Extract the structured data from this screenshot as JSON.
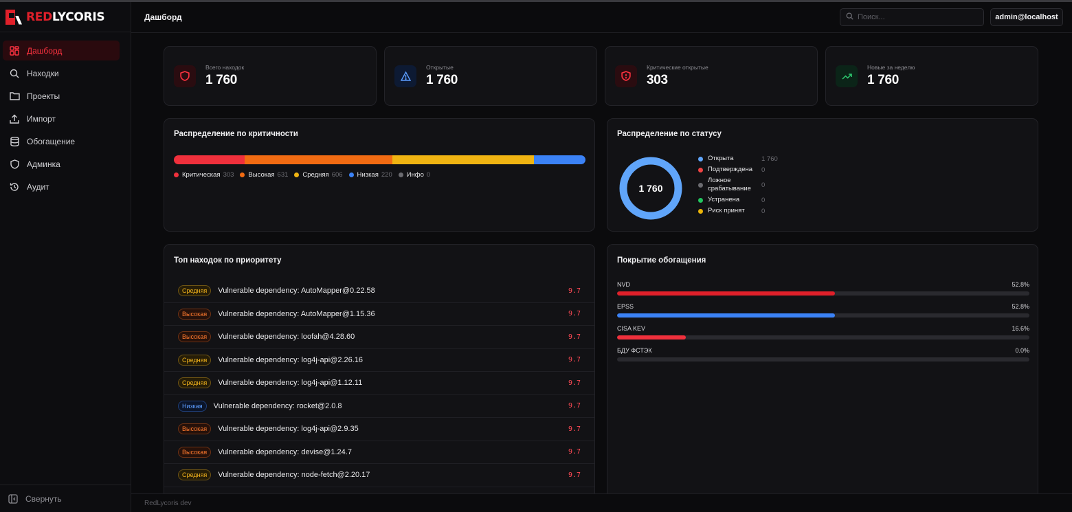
{
  "app": {
    "logo_part1": "RED",
    "logo_part2": "LYCORIS"
  },
  "sidebar": {
    "items": [
      {
        "label": "Дашборд",
        "icon": "dashboard-icon",
        "active": true
      },
      {
        "label": "Находки",
        "icon": "search-icon"
      },
      {
        "label": "Проекты",
        "icon": "folder-icon"
      },
      {
        "label": "Импорт",
        "icon": "upload-icon"
      },
      {
        "label": "Обогащение",
        "icon": "database-icon"
      },
      {
        "label": "Админка",
        "icon": "shield-icon"
      },
      {
        "label": "Аудит",
        "icon": "history-icon"
      }
    ],
    "collapse_label": "Свернуть"
  },
  "header": {
    "title": "Дашборд",
    "search_placeholder": "Поиск...",
    "user": "admin@localhost"
  },
  "stats": [
    {
      "label": "Всего находок",
      "value": "1 760",
      "icon": "shield-icon",
      "color": "#ff3340"
    },
    {
      "label": "Открытые",
      "value": "1 760",
      "icon": "alert-triangle-icon",
      "color": "#5c9dff"
    },
    {
      "label": "Критические открытые",
      "value": "303",
      "icon": "shield-alert-icon",
      "color": "#ff3340"
    },
    {
      "label": "Новые за неделю",
      "value": "1 760",
      "icon": "trending-up-icon",
      "color": "#2ecc71"
    }
  ],
  "severity": {
    "title": "Распределение по критичности",
    "items": [
      {
        "label": "Критическая",
        "count": 303,
        "color": "#f0303c"
      },
      {
        "label": "Высокая",
        "count": 631,
        "color": "#f26b12"
      },
      {
        "label": "Средняя",
        "count": 606,
        "color": "#f0b412"
      },
      {
        "label": "Низкая",
        "count": 220,
        "color": "#3b82f6"
      },
      {
        "label": "Инфо",
        "count": 0,
        "color": "#6b6b70"
      }
    ]
  },
  "status": {
    "title": "Распределение по статусу",
    "total": "1 760",
    "items": [
      {
        "label": "Открыта",
        "count": "1 760",
        "color": "#60a5fa"
      },
      {
        "label": "Подтверждена",
        "count": "0",
        "color": "#ef4444"
      },
      {
        "label": "Ложное срабатывание",
        "count": "0",
        "color": "#6b6b70"
      },
      {
        "label": "Устранена",
        "count": "0",
        "color": "#22c55e"
      },
      {
        "label": "Риск принят",
        "count": "0",
        "color": "#eab308"
      }
    ]
  },
  "top": {
    "title": "Топ находок по приоритету",
    "rows": [
      {
        "severity": "Средняя",
        "sev_class": "medium",
        "title": "Vulnerable dependency: AutoMapper@0.22.58",
        "score": "9.7"
      },
      {
        "severity": "Высокая",
        "sev_class": "high",
        "title": "Vulnerable dependency: AutoMapper@1.15.36",
        "score": "9.7"
      },
      {
        "severity": "Высокая",
        "sev_class": "high",
        "title": "Vulnerable dependency: loofah@4.28.60",
        "score": "9.7"
      },
      {
        "severity": "Средняя",
        "sev_class": "medium",
        "title": "Vulnerable dependency: log4j-api@2.26.16",
        "score": "9.7"
      },
      {
        "severity": "Средняя",
        "sev_class": "medium",
        "title": "Vulnerable dependency: log4j-api@1.12.11",
        "score": "9.7"
      },
      {
        "severity": "Низкая",
        "sev_class": "low",
        "title": "Vulnerable dependency: rocket@2.0.8",
        "score": "9.7"
      },
      {
        "severity": "Высокая",
        "sev_class": "high",
        "title": "Vulnerable dependency: log4j-api@2.9.35",
        "score": "9.7"
      },
      {
        "severity": "Высокая",
        "sev_class": "high",
        "title": "Vulnerable dependency: devise@1.24.7",
        "score": "9.7"
      },
      {
        "severity": "Средняя",
        "sev_class": "medium",
        "title": "Vulnerable dependency: node-fetch@2.20.17",
        "score": "9.7"
      }
    ]
  },
  "coverage": {
    "title": "Покрытие обогащения",
    "items": [
      {
        "label": "NVD",
        "percent_label": "52.8%",
        "percent": 52.8,
        "color": "#e0202a"
      },
      {
        "label": "EPSS",
        "percent_label": "52.8%",
        "percent": 52.8,
        "color": "#3b82f6"
      },
      {
        "label": "CISA KEV",
        "percent_label": "16.6%",
        "percent": 16.6,
        "color": "#f0303c"
      },
      {
        "label": "БДУ ФСТЭК",
        "percent_label": "0.0%",
        "percent": 0,
        "color": "#e0202a"
      }
    ]
  },
  "footer": {
    "text": "RedLycoris dev"
  }
}
